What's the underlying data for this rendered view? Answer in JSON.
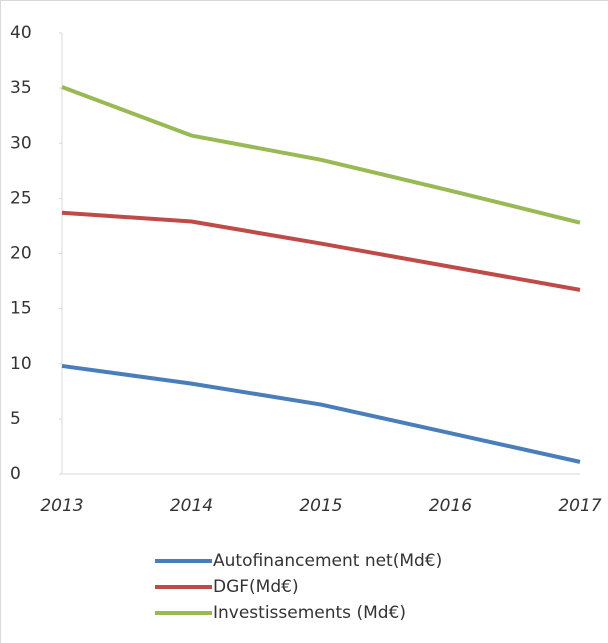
{
  "chart_data": {
    "type": "line",
    "categories": [
      "2013",
      "2014",
      "2015",
      "2016",
      "2017"
    ],
    "series": [
      {
        "name": "Autofinancement net(Md€)",
        "color": "#4a7ebb",
        "values": [
          9.8,
          8.2,
          6.3,
          3.7,
          1.1
        ]
      },
      {
        "name": "DGF(Md€)",
        "color": "#be4b48",
        "values": [
          23.7,
          22.9,
          20.9,
          18.8,
          16.7
        ]
      },
      {
        "name": "Investissements (Md€)",
        "color": "#98b954",
        "values": [
          35.1,
          30.7,
          28.5,
          25.7,
          22.8
        ]
      }
    ],
    "ylim": [
      0,
      40
    ],
    "yticks": [
      0,
      5,
      10,
      15,
      20,
      25,
      30,
      35,
      40
    ],
    "grid": false,
    "legend": "bottom"
  }
}
